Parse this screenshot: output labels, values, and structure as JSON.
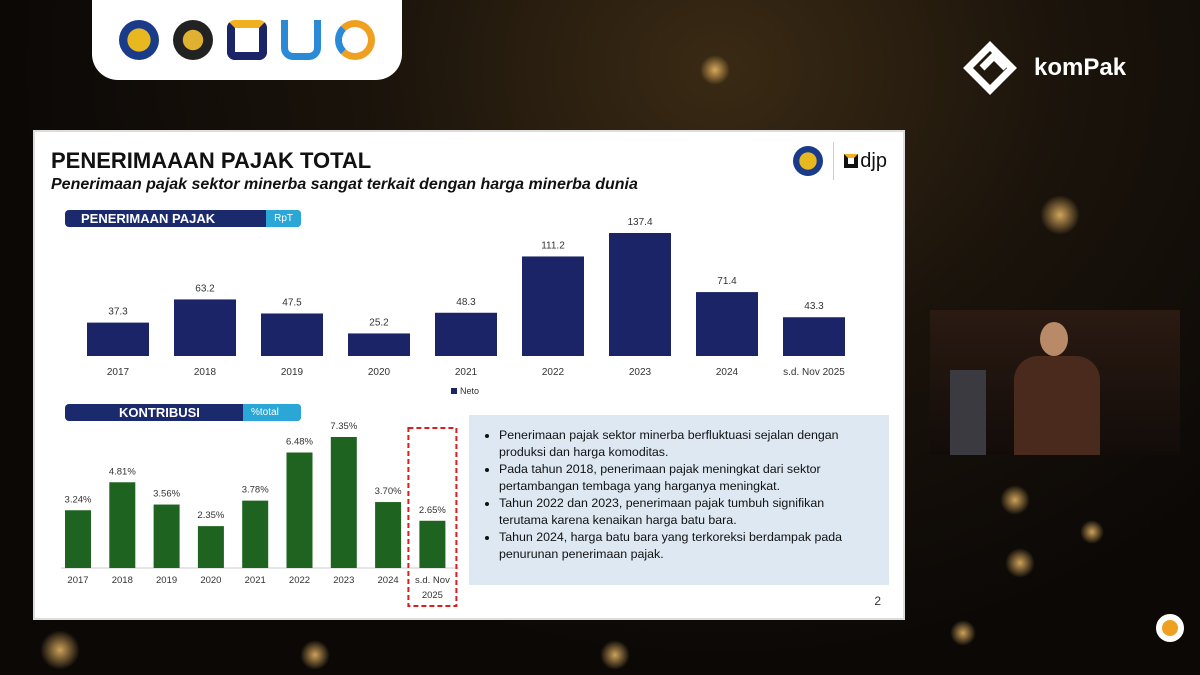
{
  "overlay": {
    "brand": "komPak"
  },
  "slide": {
    "title": "PENERIMAAAN PAJAK TOTAL",
    "subtitle": "Penerimaan pajak sektor minerba sangat terkait dengan harga minerba dunia",
    "logo_text": "djp",
    "page_number": "2",
    "bullets": [
      "Penerimaan pajak sektor minerba berfluktuasi sejalan dengan produksi dan harga komoditas.",
      "Pada tahun 2018, penerimaan pajak meningkat dari sektor pertambangan tembaga yang harganya meningkat.",
      "Tahun 2022 dan 2023, penerimaan pajak tumbuh signifikan terutama karena kenaikan harga batu bara.",
      "Tahun 2024, harga batu bara yang terkoreksi berdampak pada penurunan penerimaan pajak."
    ]
  },
  "chart_data": [
    {
      "type": "bar",
      "title": "PENERIMAAN PAJAK",
      "unit": "RpT",
      "categories": [
        "2017",
        "2018",
        "2019",
        "2020",
        "2021",
        "2022",
        "2023",
        "2024",
        "s.d. Nov 2025"
      ],
      "series": [
        {
          "name": "Neto",
          "values": [
            37.3,
            63.2,
            47.5,
            25.2,
            48.3,
            111.2,
            137.4,
            71.4,
            43.3
          ]
        }
      ],
      "labels": [
        "37.3",
        "63.2",
        "47.5",
        "25.2",
        "48.3",
        "111.2",
        "137.4",
        "71.4",
        "43.3"
      ],
      "color": "#1a2466",
      "legend": "bottom"
    },
    {
      "type": "bar",
      "title": "KONTRIBUSI",
      "unit": "%total",
      "categories": [
        "2017",
        "2018",
        "2019",
        "2020",
        "2021",
        "2022",
        "2023",
        "2024",
        "s.d. Nov 2025"
      ],
      "values": [
        3.24,
        4.81,
        3.56,
        2.35,
        3.78,
        6.48,
        7.35,
        3.7,
        2.65
      ],
      "labels": [
        "3.24%",
        "4.81%",
        "3.56%",
        "2.35%",
        "3.78%",
        "6.48%",
        "7.35%",
        "3.70%",
        "2.65%"
      ],
      "color": "#1e6420",
      "highlight": "s.d. Nov 2025",
      "highlight_color": "#d42020"
    }
  ]
}
